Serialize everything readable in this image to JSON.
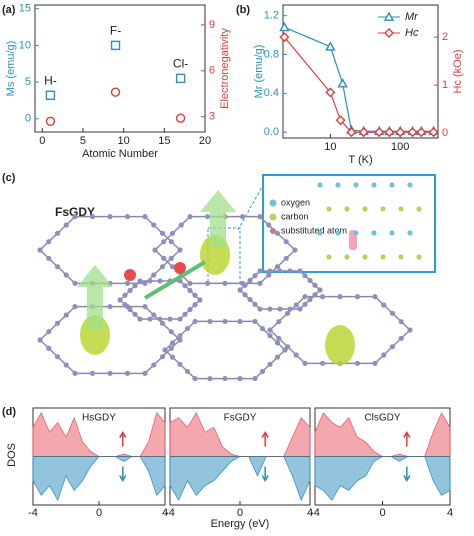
{
  "chart_data": [
    {
      "type": "scatter",
      "panel_label": "(a)",
      "xlabel": "Atomic Number",
      "ylabel": "Ms (emu/g)",
      "y2label": "Electronegativity",
      "xlim": [
        -0.9,
        20
      ],
      "xticks": [
        0,
        5,
        10,
        15,
        20
      ],
      "ylim": [
        -1.8,
        15.5
      ],
      "yticks": [
        0,
        5,
        10,
        15
      ],
      "y2lim": [
        2.0,
        10.3
      ],
      "y2ticks": [
        3,
        6,
        9
      ],
      "annotations": [
        "H-",
        "F-",
        "Cl-"
      ],
      "series": [
        {
          "color": "#2a8fbd",
          "marker": "square",
          "x": [
            1,
            9,
            17
          ],
          "values": [
            3.2,
            10.0,
            5.5
          ]
        },
        {
          "color": "#e03c3c",
          "marker": "circle",
          "axis": "y2",
          "x": [
            1,
            9,
            17
          ],
          "values": [
            2.7,
            4.6,
            2.9
          ]
        }
      ]
    },
    {
      "type": "line",
      "panel_label": "(b)",
      "xlabel": "T (K)",
      "ylabel": "Mr (emu/g)",
      "y2label": "Hc (kOe)",
      "log_x": true,
      "xlim": [
        2.1,
        347
      ],
      "xticks": [
        10,
        100
      ],
      "ylim": [
        -0.06,
        1.31
      ],
      "yticks": [
        {
          "value": 0,
          "label": "0.0"
        },
        {
          "value": 0.4,
          "label": "0.4"
        },
        {
          "value": 0.8,
          "label": "0.8"
        },
        {
          "value": 1.2,
          "label": "1.2"
        }
      ],
      "y2lim": [
        -0.1,
        2.67
      ],
      "y2ticks": [
        0,
        1,
        2
      ],
      "legend_position": "upper right",
      "series": [
        {
          "name": "Mr",
          "color": "#2a8fbd",
          "marker": "triangle",
          "x": [
            2.2,
            10,
            15,
            20,
            30,
            50,
            70,
            100,
            150,
            200,
            300
          ],
          "values": [
            1.08,
            0.88,
            0.5,
            0.02,
            0.01,
            0.01,
            0.01,
            0.01,
            0.01,
            0.01,
            0.01
          ]
        },
        {
          "name": "Hc",
          "color": "#e03c3c",
          "marker": "diamond",
          "axis": "y2",
          "x": [
            2.2,
            10,
            14,
            20,
            30,
            50,
            70,
            100,
            150,
            200,
            300
          ],
          "values": [
            2.0,
            0.85,
            0.27,
            0.02,
            0.02,
            0.02,
            0.02,
            0.02,
            0.02,
            0.02,
            0.02
          ]
        }
      ]
    },
    {
      "type": "area",
      "title": "HsGDY",
      "xlim": [
        -4,
        4
      ],
      "xticks": [
        -4,
        0,
        4
      ],
      "ylim": [
        -1,
        1
      ],
      "x": [
        -4,
        -3.5,
        -3,
        -2.5,
        -2,
        -1.5,
        -1,
        -0.5,
        0,
        0.5,
        1,
        1.5,
        2,
        2.5,
        3,
        3.5,
        4
      ],
      "series": [
        {
          "color": "#e8606a",
          "values": [
            0.6,
            0.9,
            0.5,
            0.7,
            0.4,
            0.8,
            0.3,
            0.1,
            0,
            0,
            0,
            0.05,
            0,
            0,
            0.3,
            0.9,
            0.7
          ]
        },
        {
          "color": "#3a93c3",
          "values": [
            -0.5,
            -0.8,
            -0.6,
            -0.9,
            -0.4,
            -0.7,
            -0.5,
            -0.2,
            0,
            0,
            0,
            -0.1,
            0,
            0,
            -0.3,
            -0.8,
            -0.6
          ]
        }
      ]
    },
    {
      "type": "area",
      "title": "FsGDY",
      "xlim": [
        -4,
        4
      ],
      "xticks": [
        -4,
        0,
        4
      ],
      "ylim": [
        -1,
        1
      ],
      "x": [
        -4,
        -3.5,
        -3,
        -2.5,
        -2,
        -1.5,
        -1,
        -0.5,
        0,
        0.5,
        1,
        1.5,
        2,
        2.5,
        3,
        3.5,
        4
      ],
      "series": [
        {
          "color": "#e8606a",
          "values": [
            0.7,
            0.8,
            0.6,
            0.9,
            0.5,
            0.6,
            0.2,
            0.05,
            0,
            0,
            0,
            0,
            0,
            0,
            0.4,
            0.8,
            0.6
          ]
        },
        {
          "color": "#3a93c3",
          "values": [
            -0.6,
            -0.9,
            -0.5,
            -0.8,
            -0.6,
            -0.5,
            -0.3,
            -0.1,
            0,
            0,
            -0.4,
            0,
            0,
            0,
            -0.4,
            -0.9,
            -0.5
          ]
        }
      ]
    },
    {
      "type": "area",
      "title": "ClsGDY",
      "xlim": [
        -4,
        4
      ],
      "xticks": [
        -4,
        0,
        4
      ],
      "ylim": [
        -1,
        1
      ],
      "x": [
        -4,
        -3.5,
        -3,
        -2.5,
        -2,
        -1.5,
        -1,
        -0.5,
        0,
        0.5,
        1,
        1.5,
        2,
        2.5,
        3,
        3.5,
        4
      ],
      "series": [
        {
          "color": "#e8606a",
          "values": [
            0.5,
            0.9,
            0.7,
            0.6,
            0.8,
            0.4,
            0.3,
            0.1,
            0,
            0,
            0.05,
            0,
            0,
            0,
            0.5,
            0.9,
            0.6
          ]
        },
        {
          "color": "#3a93c3",
          "values": [
            -0.6,
            -0.7,
            -0.9,
            -0.6,
            -0.7,
            -0.5,
            -0.4,
            -0.1,
            0,
            0,
            -0.1,
            0,
            0,
            0,
            -0.5,
            -0.8,
            -0.7
          ]
        }
      ]
    }
  ],
  "panel_c": {
    "label": "(c)",
    "title": "FsGDY",
    "legend": [
      "oxygen",
      "carbon",
      "substituted atom"
    ]
  },
  "panel_d": {
    "label": "(d)",
    "ylabel": "DOS",
    "xlabel": "Energy (eV)"
  }
}
